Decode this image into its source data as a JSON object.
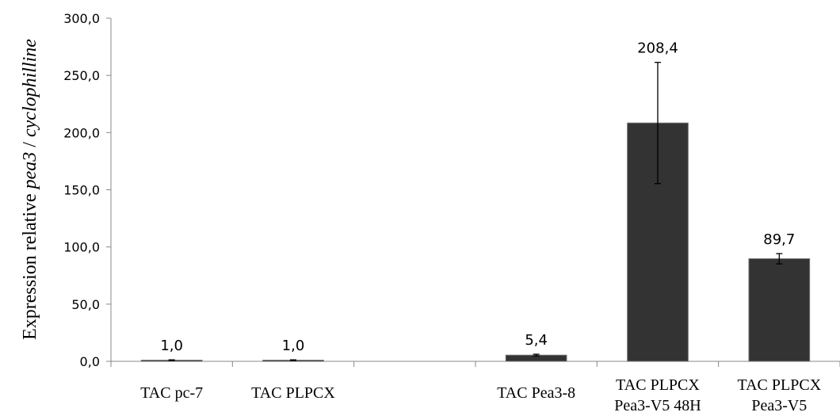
{
  "chart_data": {
    "type": "bar",
    "categories": [
      [
        "TAC pc-7"
      ],
      [
        "TAC PLPCX"
      ],
      [
        ""
      ],
      [
        "TAC Pea3-8"
      ],
      [
        "TAC PLPCX",
        "Pea3-V5 48H"
      ],
      [
        "TAC PLPCX",
        "Pea3-V5"
      ]
    ],
    "values": [
      1.0,
      1.0,
      null,
      5.4,
      208.4,
      89.7
    ],
    "error": [
      0.3,
      0.3,
      null,
      0.8,
      53.0,
      4.5
    ],
    "data_labels": [
      "1,0",
      "1,0",
      "",
      "5,4",
      "208,4",
      "89,7"
    ],
    "ylim": [
      0,
      300
    ],
    "yticks": [
      0,
      50,
      100,
      150,
      200,
      250,
      300
    ],
    "ytick_labels": [
      "0,0",
      "50,0",
      "100,0",
      "150,0",
      "200,0",
      "250,0",
      "300,0"
    ],
    "ylabel_parts": [
      {
        "text": "Expression relative ",
        "italic": false
      },
      {
        "text": "pea3",
        "italic": true
      },
      {
        "text": " / ",
        "italic": false
      },
      {
        "text": "cyclophilline",
        "italic": true
      }
    ],
    "bar_color": "#333333",
    "grid": false,
    "legend": "none"
  }
}
